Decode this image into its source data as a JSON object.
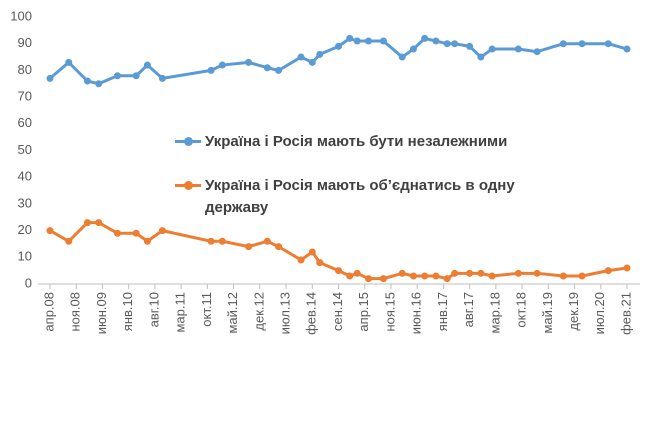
{
  "chart_data": {
    "type": "line",
    "x": [
      0,
      5,
      10,
      13,
      18,
      23,
      26,
      30,
      43,
      46,
      53,
      58,
      61,
      67,
      70,
      72,
      77,
      80,
      82,
      85,
      89,
      94,
      97,
      100,
      103,
      106,
      108,
      112,
      115,
      118,
      125,
      130,
      137,
      142,
      149,
      154
    ],
    "series": [
      {
        "name": "Україна і Росія мають бути незалежними",
        "color": "#5b9bd5",
        "values": [
          77,
          83,
          76,
          75,
          78,
          78,
          82,
          77,
          80,
          82,
          83,
          81,
          80,
          85,
          83,
          86,
          89,
          92,
          91,
          91,
          91,
          85,
          88,
          92,
          91,
          90,
          90,
          89,
          85,
          88,
          88,
          87,
          90,
          90,
          90,
          88
        ]
      },
      {
        "name": "Україна і Росія мають об’єднатись в одну державу",
        "color": "#ed7d31",
        "values": [
          20,
          16,
          23,
          23,
          19,
          19,
          16,
          20,
          16,
          16,
          14,
          16,
          14,
          9,
          12,
          8,
          5,
          3,
          4,
          2,
          2,
          4,
          3,
          3,
          3,
          2,
          4,
          4,
          4,
          3,
          4,
          4,
          3,
          3,
          5,
          6
        ]
      }
    ],
    "xlim": [
      0,
      154
    ],
    "xticks": [
      {
        "value": 0,
        "label": "апр.08"
      },
      {
        "value": 7,
        "label": "ноя.08"
      },
      {
        "value": 14,
        "label": "июн.09"
      },
      {
        "value": 21,
        "label": "янв.10"
      },
      {
        "value": 28,
        "label": "авг.10"
      },
      {
        "value": 35,
        "label": "мар.11"
      },
      {
        "value": 42,
        "label": "окт.11"
      },
      {
        "value": 49,
        "label": "май.12"
      },
      {
        "value": 56,
        "label": "дек.12"
      },
      {
        "value": 63,
        "label": "июл.13"
      },
      {
        "value": 70,
        "label": "фев.14"
      },
      {
        "value": 77,
        "label": "сен.14"
      },
      {
        "value": 84,
        "label": "апр.15"
      },
      {
        "value": 91,
        "label": "ноя.15"
      },
      {
        "value": 98,
        "label": "июн.16"
      },
      {
        "value": 105,
        "label": "янв.17"
      },
      {
        "value": 112,
        "label": "авг.17"
      },
      {
        "value": 119,
        "label": "мар.18"
      },
      {
        "value": 126,
        "label": "окт.18"
      },
      {
        "value": 133,
        "label": "май.19"
      },
      {
        "value": 140,
        "label": "дек.19"
      },
      {
        "value": 147,
        "label": "июл.20"
      },
      {
        "value": 154,
        "label": "фев.21"
      }
    ],
    "ylim": [
      0,
      100
    ],
    "yticks": [
      0,
      10,
      20,
      30,
      40,
      50,
      60,
      70,
      80,
      90,
      100
    ],
    "grid": false
  }
}
